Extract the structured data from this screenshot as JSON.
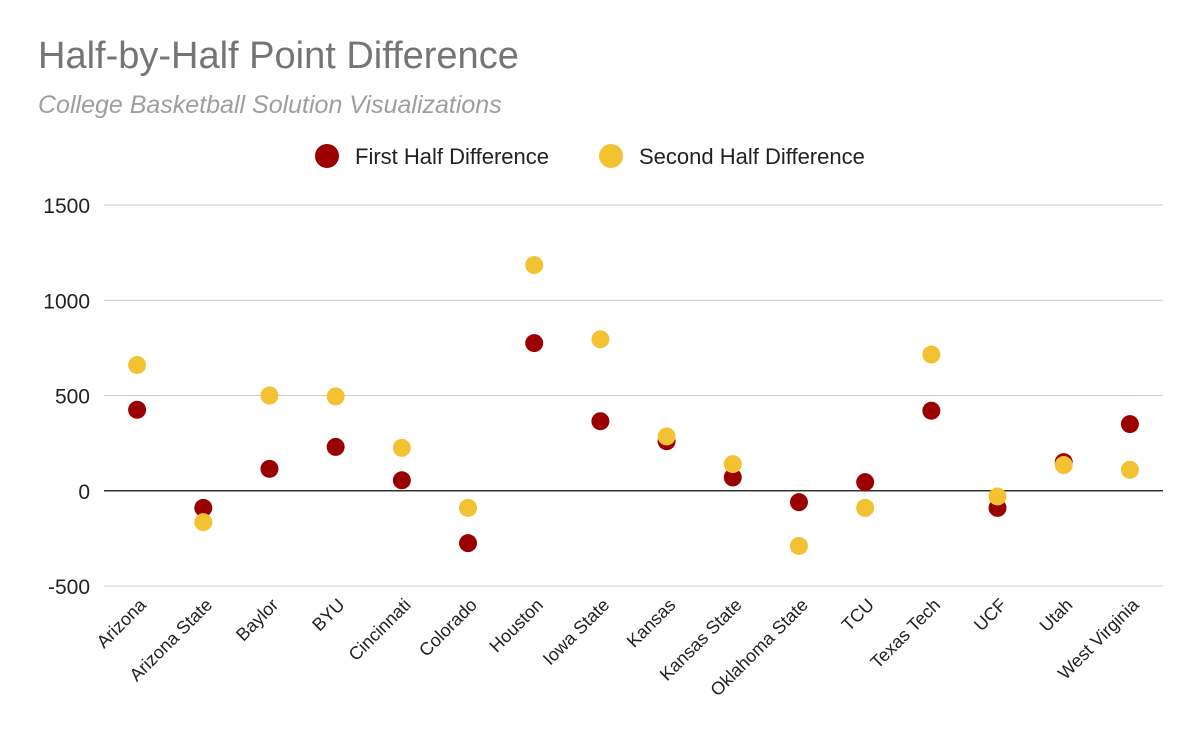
{
  "colors": {
    "first_half": "#9b0000",
    "second_half": "#f2c232",
    "gridline": "#cccccc",
    "zero_line": "#333333"
  },
  "chart_data": {
    "type": "scatter",
    "title": "Half-by-Half Point Difference",
    "subtitle": "College Basketball Solution Visualizations",
    "xlabel": "",
    "ylabel": "",
    "ylim": [
      -500,
      1500
    ],
    "yticks": [
      1500,
      1000,
      500,
      0,
      -500
    ],
    "legend_position": "top",
    "grid": true,
    "categories": [
      "Arizona",
      "Arizona State",
      "Baylor",
      "BYU",
      "Cincinnati",
      "Colorado",
      "Houston",
      "Iowa State",
      "Kansas",
      "Kansas State",
      "Oklahoma State",
      "TCU",
      "Texas Tech",
      "UCF",
      "Utah",
      "West Virginia"
    ],
    "series": [
      {
        "name": "First Half Difference",
        "values": [
          425,
          -90,
          115,
          230,
          55,
          -275,
          775,
          365,
          260,
          70,
          -60,
          45,
          420,
          -90,
          150,
          350
        ]
      },
      {
        "name": "Second Half Difference",
        "values": [
          660,
          -165,
          500,
          495,
          225,
          -90,
          1185,
          795,
          285,
          140,
          -290,
          -90,
          715,
          -30,
          135,
          110
        ]
      }
    ]
  }
}
